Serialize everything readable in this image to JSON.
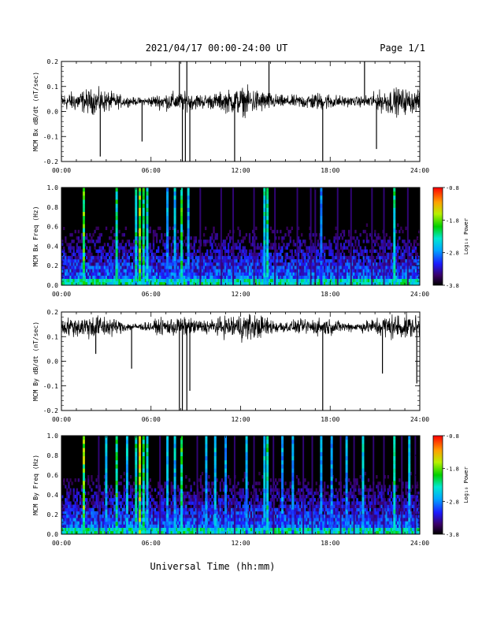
{
  "header": {
    "date_range": "2021/04/17  00:00-24:00 UT",
    "page": "Page 1/1"
  },
  "footer": {
    "xlabel": "Universal Time (hh:mm)"
  },
  "colors": {
    "background": "#ffffff",
    "trace": "#000000",
    "spectrogram_background": "#000000"
  },
  "chart_data": [
    {
      "type": "line",
      "ylabel": "MCM Bx dB/dt (nT/sec)",
      "xlim": [
        0,
        24
      ],
      "ylim": [
        -0.2,
        0.2
      ],
      "x_ticks": [
        "00:00",
        "06:00",
        "12:00",
        "18:00",
        "24:00"
      ],
      "y_ticks": [
        "-0.2",
        "-0.1",
        "0.0",
        "0.1",
        "0.2"
      ],
      "baseline": 0.04,
      "noise_amplitude": 0.05,
      "spikes": [
        {
          "hour": 2.6,
          "value": -0.18
        },
        {
          "hour": 5.4,
          "value": -0.12
        },
        {
          "hour": 7.9,
          "value": 0.2
        },
        {
          "hour": 8.1,
          "value": -0.2
        },
        {
          "hour": 8.3,
          "value": -0.2
        },
        {
          "hour": 8.4,
          "value": 0.2
        },
        {
          "hour": 8.6,
          "value": -0.2
        },
        {
          "hour": 11.6,
          "value": -0.2
        },
        {
          "hour": 13.9,
          "value": 0.2
        },
        {
          "hour": 17.5,
          "value": -0.2
        },
        {
          "hour": 20.3,
          "value": 0.2
        },
        {
          "hour": 21.1,
          "value": -0.15
        }
      ]
    },
    {
      "type": "heatmap",
      "ylabel": "MCM Bx Freq (Hz)",
      "xlim": [
        0,
        24
      ],
      "ylim": [
        0.0,
        1.0
      ],
      "x_ticks": [
        "00:00",
        "06:00",
        "12:00",
        "18:00",
        "24:00"
      ],
      "y_ticks": [
        "0.0",
        "0.2",
        "0.4",
        "0.6",
        "0.8",
        "1.0"
      ],
      "colorbar": {
        "label": "Log₁₀ Power",
        "min": -3.8,
        "max": -0.8,
        "ticks": [
          "-0.8",
          "-1.8",
          "-2.8",
          "-3.8"
        ]
      },
      "bright_columns": [
        {
          "hour": 1.5,
          "power": 0.65
        },
        {
          "hour": 3.7,
          "power": 0.55
        },
        {
          "hour": 5.0,
          "power": 0.55
        },
        {
          "hour": 5.25,
          "power": 0.7
        },
        {
          "hour": 5.5,
          "power": 0.6
        },
        {
          "hour": 5.75,
          "power": 0.5
        },
        {
          "hour": 7.1,
          "power": 0.4
        },
        {
          "hour": 7.6,
          "power": 0.45
        },
        {
          "hour": 8.05,
          "power": 0.6
        },
        {
          "hour": 8.5,
          "power": 0.4
        },
        {
          "hour": 13.6,
          "power": 0.5
        },
        {
          "hour": 13.8,
          "power": 0.55
        },
        {
          "hour": 17.4,
          "power": 0.35
        },
        {
          "hour": 22.3,
          "power": 0.55
        }
      ],
      "dim_columns": [
        9.3,
        10.7,
        11.5,
        12.9,
        14.3,
        15.8,
        16.7,
        17.0,
        18.5,
        19.4,
        20.8,
        21.6,
        23.2
      ]
    },
    {
      "type": "line",
      "ylabel": "MCM By dB/dt (nT/sec)",
      "xlim": [
        0,
        24
      ],
      "ylim": [
        -0.2,
        0.2
      ],
      "x_ticks": [
        "00:00",
        "06:00",
        "12:00",
        "18:00",
        "24:00"
      ],
      "y_ticks": [
        "-0.2",
        "-0.1",
        "0.0",
        "0.1",
        "0.2"
      ],
      "baseline": 0.14,
      "noise_amplitude": 0.05,
      "spikes": [
        {
          "hour": 2.3,
          "value": 0.03
        },
        {
          "hour": 4.7,
          "value": -0.03
        },
        {
          "hour": 7.9,
          "value": -0.2
        },
        {
          "hour": 8.1,
          "value": -0.2
        },
        {
          "hour": 8.4,
          "value": -0.2
        },
        {
          "hour": 8.6,
          "value": -0.12
        },
        {
          "hour": 17.5,
          "value": -0.2
        },
        {
          "hour": 21.5,
          "value": -0.05
        },
        {
          "hour": 23.8,
          "value": -0.09
        }
      ]
    },
    {
      "type": "heatmap",
      "ylabel": "MCM By Freq (Hz)",
      "xlim": [
        0,
        24
      ],
      "ylim": [
        0.0,
        1.0
      ],
      "x_ticks": [
        "00:00",
        "06:00",
        "12:00",
        "18:00",
        "24:00"
      ],
      "y_ticks": [
        "0.0",
        "0.2",
        "0.4",
        "0.6",
        "0.8",
        "1.0"
      ],
      "colorbar": {
        "label": "Log₁₀ Power",
        "min": -3.8,
        "max": -0.8,
        "ticks": [
          "-0.8",
          "-1.8",
          "-2.8",
          "-3.8"
        ]
      },
      "bright_columns": [
        {
          "hour": 1.5,
          "power": 0.7
        },
        {
          "hour": 3.0,
          "power": 0.45
        },
        {
          "hour": 3.7,
          "power": 0.6
        },
        {
          "hour": 4.4,
          "power": 0.45
        },
        {
          "hour": 5.0,
          "power": 0.55
        },
        {
          "hour": 5.25,
          "power": 0.75
        },
        {
          "hour": 5.5,
          "power": 0.6
        },
        {
          "hour": 5.75,
          "power": 0.5
        },
        {
          "hour": 7.1,
          "power": 0.45
        },
        {
          "hour": 7.6,
          "power": 0.45
        },
        {
          "hour": 8.05,
          "power": 0.6
        },
        {
          "hour": 9.7,
          "power": 0.4
        },
        {
          "hour": 10.3,
          "power": 0.45
        },
        {
          "hour": 11.0,
          "power": 0.4
        },
        {
          "hour": 12.4,
          "power": 0.4
        },
        {
          "hour": 13.6,
          "power": 0.45
        },
        {
          "hour": 13.8,
          "power": 0.55
        },
        {
          "hour": 14.8,
          "power": 0.4
        },
        {
          "hour": 15.5,
          "power": 0.4
        },
        {
          "hour": 17.4,
          "power": 0.4
        },
        {
          "hour": 18.1,
          "power": 0.4
        },
        {
          "hour": 19.1,
          "power": 0.4
        },
        {
          "hour": 20.2,
          "power": 0.45
        },
        {
          "hour": 22.3,
          "power": 0.55
        },
        {
          "hour": 23.3,
          "power": 0.45
        }
      ],
      "dim_columns": [
        2.5,
        6.6,
        9.1,
        11.6,
        12.9,
        14.2,
        16.2,
        16.8,
        18.7,
        19.6,
        20.9,
        21.6,
        22.8,
        23.7
      ]
    }
  ]
}
